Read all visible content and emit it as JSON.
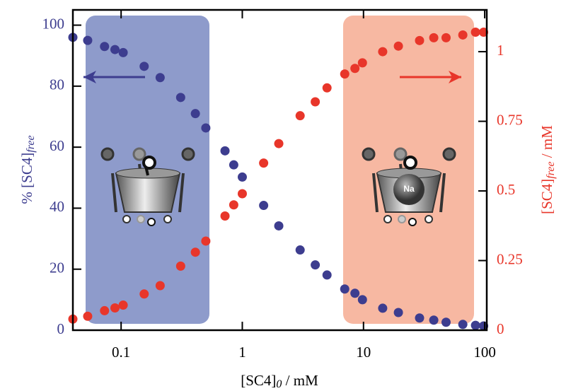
{
  "chart_data": {
    "type": "scatter",
    "xlabel": [
      "[SC4]",
      "0",
      " / mM"
    ],
    "ylabel": [
      "% [SC4]",
      "free"
    ],
    "y2label": [
      "[SC4]",
      "free",
      " / mM"
    ],
    "annotation": "Na",
    "xscale": "log",
    "xlim": [
      0.04,
      104
    ],
    "xticks": [
      0.1,
      1,
      10,
      100
    ],
    "ylim": [
      0,
      105
    ],
    "yticks": [
      0,
      20,
      40,
      60,
      80,
      100
    ],
    "y2lim": [
      0,
      1.15
    ],
    "y2ticks": [
      0,
      0.25,
      0.5,
      0.75,
      1
    ],
    "series": [
      {
        "color": "#3d3d8f",
        "x": [
          0.04,
          0.053,
          0.073,
          0.089,
          0.104,
          0.155,
          0.21,
          0.31,
          0.41,
          0.5,
          0.72,
          0.85,
          1.0,
          1.5,
          2.0,
          3.0,
          4.0,
          5.0,
          7,
          8.5,
          9.8,
          14.4,
          19.4,
          29,
          38,
          48,
          66,
          84,
          98
        ],
        "values": [
          96,
          95,
          93,
          92,
          91,
          86.5,
          82.8,
          76.3,
          71,
          66.3,
          58.8,
          54.2,
          50.2,
          40.9,
          34.2,
          26.3,
          21.4,
          18.1,
          13.5,
          12.1,
          10,
          7.2,
          5.8,
          4,
          3.3,
          2.6,
          1.9,
          1.6,
          1.4
        ]
      },
      {
        "color": "#e8362a",
        "axis": "y2",
        "x": [
          0.04,
          0.053,
          0.073,
          0.089,
          0.104,
          0.155,
          0.21,
          0.31,
          0.41,
          0.5,
          0.72,
          0.85,
          1.0,
          1.5,
          2.0,
          3.0,
          4.0,
          5.0,
          7,
          8.5,
          9.8,
          14.4,
          19.4,
          29,
          38,
          48,
          66,
          84,
          98
        ],
        "values": [
          0.04,
          0.05,
          0.07,
          0.08,
          0.09,
          0.13,
          0.16,
          0.23,
          0.28,
          0.32,
          0.41,
          0.45,
          0.49,
          0.6,
          0.67,
          0.77,
          0.82,
          0.87,
          0.92,
          0.94,
          0.96,
          1.0,
          1.02,
          1.04,
          1.05,
          1.05,
          1.06,
          1.07,
          1.07
        ]
      }
    ]
  }
}
